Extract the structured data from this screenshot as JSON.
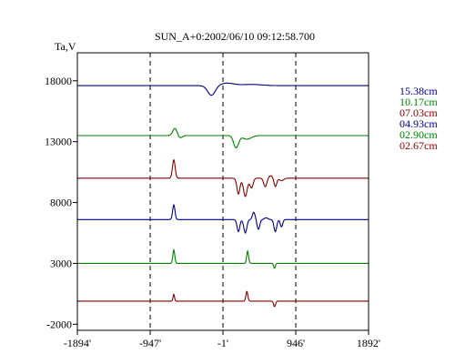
{
  "chart_data": {
    "type": "line",
    "title": "SUN_A+0:2002/06/10 09:12:58.700",
    "ylabel": "Ta,V",
    "xlabel": "",
    "xlim": [
      -1894,
      1892
    ],
    "ylim": [
      -2500,
      20300
    ],
    "x_ticks": [
      {
        "value": -1894,
        "label": "-1894'"
      },
      {
        "value": -947,
        "label": "-947'"
      },
      {
        "value": -1,
        "label": "-1'"
      },
      {
        "value": 946,
        "label": "946'"
      },
      {
        "value": 1892,
        "label": "1892'"
      }
    ],
    "y_ticks": [
      {
        "value": 18000,
        "label": "18000"
      },
      {
        "value": 13000,
        "label": "13000"
      },
      {
        "value": 8000,
        "label": "8000"
      },
      {
        "value": 3000,
        "label": "3000"
      },
      {
        "value": -2000,
        "label": "-2000"
      }
    ],
    "vlines": [
      -947,
      -1,
      946
    ],
    "series": [
      {
        "name": "15.38cm",
        "color": "#00007f",
        "baseline": 17600,
        "features": [
          [
            -150,
            -800,
            70
          ],
          [
            50,
            200,
            120
          ],
          [
            360,
            100,
            200
          ]
        ]
      },
      {
        "name": "10.17cm",
        "color": "#007f00",
        "baseline": 13500,
        "features": [
          [
            -625,
            600,
            40
          ],
          [
            -560,
            -200,
            40
          ],
          [
            170,
            -1000,
            45
          ],
          [
            310,
            -300,
            80
          ]
        ]
      },
      {
        "name": "07.03cm",
        "color": "#7f0000",
        "baseline": 10000,
        "features": [
          [
            -640,
            1500,
            25
          ],
          [
            200,
            -1300,
            28
          ],
          [
            290,
            -1500,
            35
          ],
          [
            370,
            -800,
            30
          ],
          [
            550,
            -700,
            30
          ],
          [
            620,
            200,
            40
          ],
          [
            680,
            -700,
            25
          ],
          [
            760,
            -200,
            40
          ]
        ]
      },
      {
        "name": "04.93cm",
        "color": "#00007f",
        "baseline": 6600,
        "features": [
          [
            -640,
            1200,
            22
          ],
          [
            200,
            -1000,
            25
          ],
          [
            290,
            -1100,
            28
          ],
          [
            400,
            600,
            25
          ],
          [
            460,
            -800,
            25
          ],
          [
            560,
            150,
            30
          ],
          [
            680,
            -1000,
            25
          ],
          [
            760,
            -600,
            22
          ]
        ]
      },
      {
        "name": "02.90cm",
        "color": "#007f00",
        "baseline": 3000,
        "features": [
          [
            -640,
            1100,
            18
          ],
          [
            320,
            1000,
            18
          ],
          [
            670,
            -400,
            15
          ]
        ]
      },
      {
        "name": "02.67cm",
        "color": "#7f0000",
        "baseline": -100,
        "features": [
          [
            -640,
            550,
            14
          ],
          [
            310,
            800,
            18
          ],
          [
            670,
            -450,
            18
          ]
        ]
      }
    ]
  }
}
